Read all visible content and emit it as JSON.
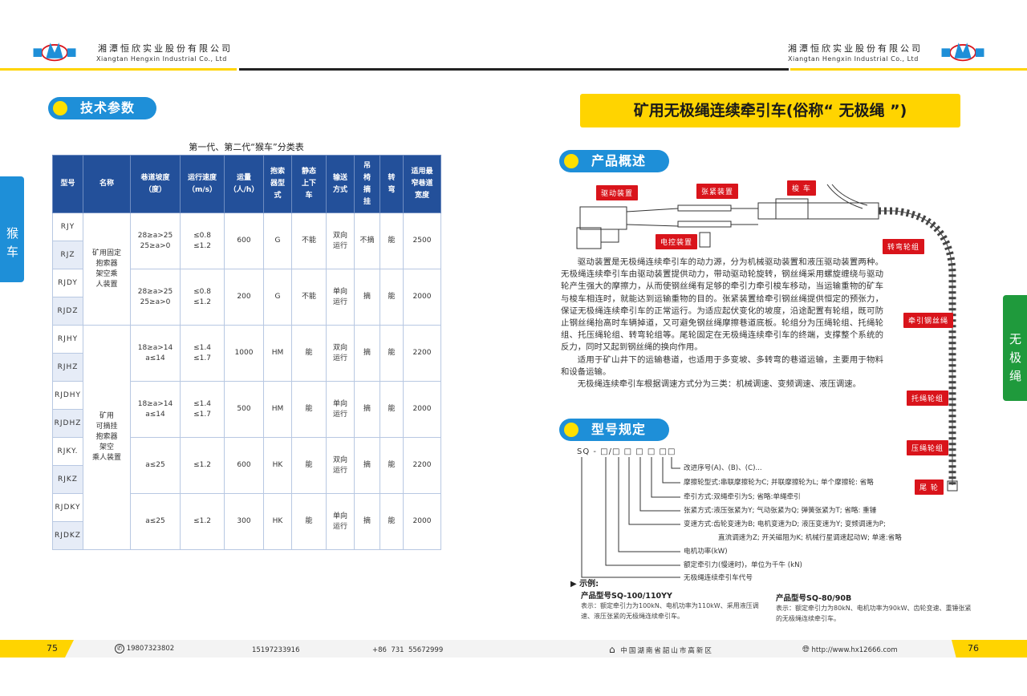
{
  "header": {
    "company_cn": "湘潭恒欣实业股份有限公司",
    "company_en": "Xiangtan Hengxin Industrial Co., Ltd",
    "logo_left_char": "恒",
    "logo_right_char": "欣",
    "brand_color": "#1e8fd8",
    "accent_color": "#ffd400"
  },
  "left": {
    "section_title": "技术参数",
    "side_tab": "猴车",
    "table_caption": "第一代、第二代“猴车”分类表",
    "columns": [
      "型号",
      "名称",
      "巷道坡度\n（度）",
      "运行速度\n（m/s）",
      "运量\n（人/h）",
      "抱索\n器型\n式",
      "静态\n上下\n车",
      "输送\n方式",
      "吊\n椅\n摘\n挂",
      "转\n弯",
      "适用最\n窄巷道\n宽度"
    ],
    "names": [
      "矿用固定\n抱索器\n架空乘\n人装置",
      "矿用\n可摘挂\n抱索器\n架空\n乘人装置"
    ],
    "groups": [
      {
        "models": [
          "RJY",
          "RJZ"
        ],
        "slope": "28≥a>25\n25≥a>0",
        "speed": "≤0.8\n≤1.2",
        "capacity": "600",
        "grip": "G",
        "static": "不能",
        "mode": "双向\n运行",
        "detach": "不摘",
        "turn": "能",
        "width": "2500"
      },
      {
        "models": [
          "RJDY",
          "RJDZ"
        ],
        "slope": "28≥a>25\n25≥a>0",
        "speed": "≤0.8\n≤1.2",
        "capacity": "200",
        "grip": "G",
        "static": "不能",
        "mode": "单向\n运行",
        "detach": "摘",
        "turn": "能",
        "width": "2000"
      },
      {
        "models": [
          "RJHY",
          "RJHZ"
        ],
        "slope": "18≥a>14\na≤14",
        "speed": "≤1.4\n≤1.7",
        "capacity": "1000",
        "grip": "HM",
        "static": "能",
        "mode": "双向\n运行",
        "detach": "摘",
        "turn": "能",
        "width": "2200"
      },
      {
        "models": [
          "RJDHY",
          "RJDHZ"
        ],
        "slope": "18≥a>14\na≤14",
        "speed": "≤1.4\n≤1.7",
        "capacity": "500",
        "grip": "HM",
        "static": "能",
        "mode": "单向\n运行",
        "detach": "摘",
        "turn": "能",
        "width": "2000"
      },
      {
        "models": [
          "RJKY.",
          "RJKZ"
        ],
        "slope": "a≤25",
        "speed": "≤1.2",
        "capacity": "600",
        "grip": "HK",
        "static": "能",
        "mode": "双向\n运行",
        "detach": "摘",
        "turn": "能",
        "width": "2200"
      },
      {
        "models": [
          "RJDKY",
          "RJDKZ"
        ],
        "slope": "a≤25",
        "speed": "≤1.2",
        "capacity": "300",
        "grip": "HK",
        "static": "能",
        "mode": "单向\n运行",
        "detach": "摘",
        "turn": "能",
        "width": "2000"
      }
    ]
  },
  "right": {
    "title": "矿用无极绳连续牵引车(俗称“ 无极绳 ”)",
    "side_tab": "无极绳",
    "overview_title": "产品概述",
    "diagram_labels": {
      "drive": "驱动装置",
      "tension": "张紧装置",
      "shuttle": "梭 车",
      "control": "电控装置",
      "turn": "转弯轮组",
      "rope": "牵引钢丝绳",
      "support": "托绳轮组",
      "press": "压绳轮组",
      "tail": "尾 轮"
    },
    "paragraphs": [
      "驱动装置是无极绳连续牵引车的动力源，分为机械驱动装置和液压驱动装置两种。无极绳连续牵引车由驱动装置提供动力，带动驱动轮旋转，钢丝绳采用螺旋缠绕与驱动轮产生强大的摩擦力，从而使钢丝绳有足够的牵引力牵引梭车移动，当运输重物的矿车与梭车相连时，就能达到运输重物的目的。张紧装置给牵引钢丝绳提供恒定的预张力，保证无极绳连续牵引车的正常运行。为适应起伏变化的坡度，沿途配置有轮组，既可防止钢丝绳抬高时车辆掉道，又可避免钢丝绳摩擦巷道底板。轮组分为压绳轮组、托绳轮组、托压绳轮组、转弯轮组等。尾轮固定在无极绳连续牵引车的终端，支撑整个系统的反力，同时又起到钢丝绳的换向作用。",
      "适用于矿山井下的运输巷道，也适用于多变坡、多转弯的巷道运输，主要用于物料和设备运输。",
      "无极绳连续牵引车根据调速方式分为三类：机械调速、变频调速、液压调速。"
    ],
    "model_title": "型号规定",
    "code_pattern": "SQ - □/□ □ □ □ □□",
    "code_items": [
      "改进序号(A)、(B)、(C)...",
      "摩擦轮型式:串联摩擦轮为C; 并联摩擦轮为L; 单个摩擦轮: 省略",
      "牵引方式:双绳牵引为S; 省略:单绳牵引",
      "张紧方式:液压张紧为Y; 气动张紧为Q; 弹簧张紧为T; 省略: 重锤",
      "变速方式:齿轮变速为B; 电机变速为D; 液压变速为Y; 变频调速为P;",
      "直流调速为Z; 开关磁阻为K; 机械行星调速起动W; 单速:省略",
      "电机功率(kW)",
      "额定牵引力(慢速时)，单位为千牛 (kN)",
      "无极绳连续牵引车代号"
    ],
    "example_title": "▶ 示例:",
    "examples": [
      {
        "model": "产品型号SQ-100/110YY",
        "desc": "表示：额定牵引力为100kN、电机功率为110kW、采用液压调速、液压张紧的无极绳连续牵引车。"
      },
      {
        "model": "产品型号SQ-80/90B",
        "desc": "表示：额定牵引力为80kN、电机功率为90kW、齿轮变速、重锤张紧的无极绳连续牵引车。"
      }
    ]
  },
  "footer": {
    "page_left": "75",
    "page_right": "76",
    "phone1": "19807323802",
    "phone2": "15197233916",
    "phone3": "+86  731  55672999",
    "address": "中国湖南省韶山市高新区",
    "website": "http://www.hx12666.com"
  }
}
